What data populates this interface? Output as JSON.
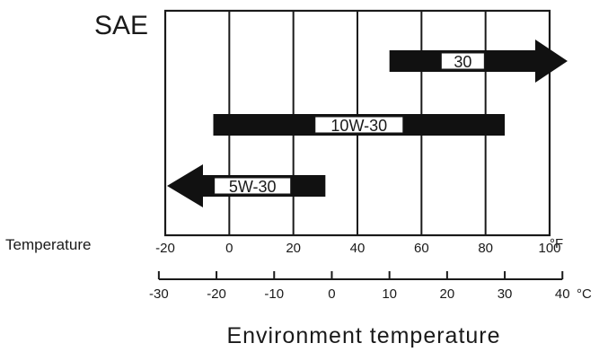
{
  "chart_data": {
    "type": "range-bar",
    "corner_label": "SAE",
    "row_label": "Temperature",
    "fahrenheit": {
      "ticks": [
        -20,
        0,
        20,
        40,
        60,
        80,
        100
      ],
      "tick_labels": [
        "-20",
        "0",
        "20",
        "40",
        "60",
        "80",
        "100"
      ],
      "unit": "°F",
      "range": [
        -20,
        100
      ]
    },
    "celsius": {
      "ticks": [
        -30,
        -20,
        -10,
        0,
        10,
        20,
        30,
        40
      ],
      "tick_labels": [
        "-30",
        "-20",
        "-10",
        "0",
        "10",
        "20",
        "30",
        "40"
      ],
      "unit": "°C"
    },
    "xlabel": "Environment temperature",
    "grid": true,
    "series": [
      {
        "name": "30",
        "from": 50,
        "to": 100,
        "arrow": "right"
      },
      {
        "name": "10W-30",
        "from": -5,
        "to": 86,
        "arrow": "none"
      },
      {
        "name": "5W-30",
        "from": -20,
        "to": 30,
        "arrow": "left"
      }
    ],
    "colors": {
      "bar": "#111111",
      "line": "#1a1a1a",
      "label_bg": "#ffffff"
    }
  }
}
